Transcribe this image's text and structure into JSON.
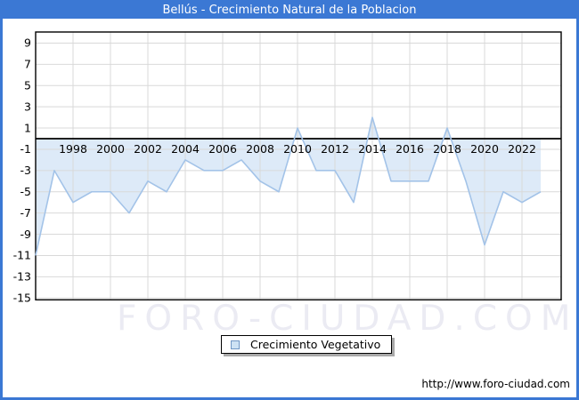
{
  "window": {
    "title": "Bellús - Crecimiento Natural de la Poblacion",
    "url": "http://www.foro-ciudad.com",
    "watermark": "FORO-CIUDAD.COM"
  },
  "legend": {
    "label": "Crecimiento Vegetativo"
  },
  "colors": {
    "frame_blue": "#3b78d4",
    "line": "#a3c3e8",
    "fill": "#ddeaf8",
    "grid": "#d9d9d9",
    "axis": "#000000",
    "watermark": "#ebebf3",
    "legend_marker_fill": "#cde2f4",
    "legend_marker_border": "#7097c5",
    "text": "#000000"
  },
  "chart_data": {
    "type": "area",
    "title": "Bellús - Crecimiento Natural de la Poblacion",
    "series_name": "Crecimiento Vegetativo",
    "x": [
      1996,
      1997,
      1998,
      1999,
      2000,
      2001,
      2002,
      2003,
      2004,
      2005,
      2006,
      2007,
      2008,
      2009,
      2010,
      2011,
      2012,
      2013,
      2014,
      2015,
      2016,
      2017,
      2018,
      2019,
      2020,
      2021,
      2022,
      2023
    ],
    "values": [
      -11,
      -3,
      -6,
      -5,
      -5,
      -7,
      -4,
      -5,
      -2,
      -3,
      -3,
      -2,
      -4,
      -5,
      1,
      -3,
      -3,
      -6,
      2,
      -4,
      -4,
      -4,
      1,
      -4,
      -10,
      -5,
      -6,
      -5
    ],
    "x_tick_labels": [
      "1998",
      "2000",
      "2002",
      "2004",
      "2006",
      "2008",
      "2010",
      "2012",
      "2014",
      "2016",
      "2018",
      "2020",
      "2022"
    ],
    "y_ticks": [
      9,
      7,
      5,
      3,
      1,
      -1,
      -3,
      -5,
      -7,
      -9,
      -11,
      -13,
      -15
    ],
    "ylim": [
      -15.2,
      10
    ],
    "xlim": [
      1996,
      2024.1
    ],
    "grid": true,
    "legend_position": "bottom-center",
    "baseline": 0
  }
}
